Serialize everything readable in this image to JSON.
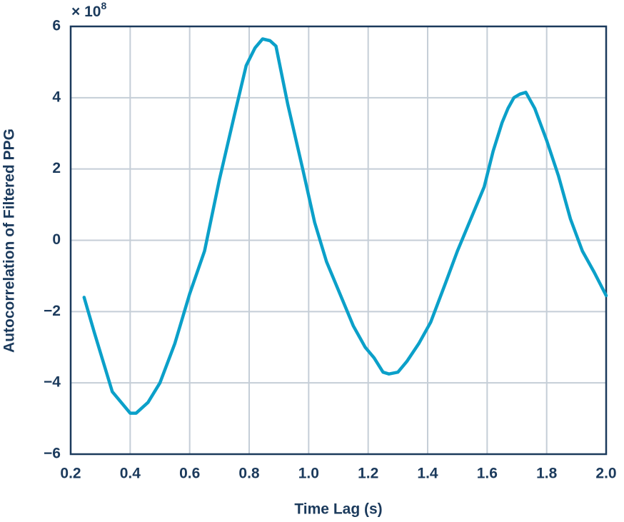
{
  "chart_data": {
    "type": "line",
    "x_label": "Time Lag (s)",
    "y_label": "Autocorrelation of Filtered PPG",
    "y_multiplier": "× 10",
    "y_multiplier_exponent": "8",
    "x": [
      0.245,
      0.28,
      0.34,
      0.37,
      0.4,
      0.42,
      0.46,
      0.5,
      0.55,
      0.6,
      0.65,
      0.7,
      0.75,
      0.79,
      0.82,
      0.845,
      0.87,
      0.89,
      0.93,
      0.98,
      1.02,
      1.06,
      1.1,
      1.15,
      1.19,
      1.22,
      1.25,
      1.27,
      1.3,
      1.33,
      1.37,
      1.41,
      1.46,
      1.5,
      1.55,
      1.59,
      1.62,
      1.65,
      1.67,
      1.69,
      1.71,
      1.73,
      1.76,
      1.8,
      1.84,
      1.88,
      1.92,
      1.96,
      2.0
    ],
    "values": [
      -1.6,
      -2.6,
      -4.25,
      -4.55,
      -4.85,
      -4.85,
      -4.55,
      -4.0,
      -2.9,
      -1.5,
      -0.3,
      1.7,
      3.5,
      4.9,
      5.4,
      5.65,
      5.6,
      5.45,
      3.8,
      2.0,
      0.5,
      -0.6,
      -1.4,
      -2.4,
      -3.0,
      -3.3,
      -3.7,
      -3.75,
      -3.7,
      -3.4,
      -2.9,
      -2.3,
      -1.2,
      -0.3,
      0.7,
      1.5,
      2.5,
      3.3,
      3.7,
      4.0,
      4.1,
      4.15,
      3.7,
      2.8,
      1.8,
      0.6,
      -0.3,
      -0.9,
      -1.55
    ],
    "color": "#0ba0c9",
    "xlim": [
      0.2,
      2.0
    ],
    "xticks": [
      0.2,
      0.4,
      0.6,
      0.8,
      {
        "value": 1.0,
        "label": "1.0"
      },
      1.2,
      1.4,
      1.6,
      1.8,
      {
        "value": 2.0,
        "label": "2.0"
      }
    ],
    "ylim": [
      -6,
      6
    ],
    "yticks": [
      {
        "value": -6,
        "label": "−6"
      },
      {
        "value": -4,
        "label": "−4"
      },
      {
        "value": -2,
        "label": "−2"
      },
      0,
      2,
      4,
      6
    ],
    "grid": true
  }
}
